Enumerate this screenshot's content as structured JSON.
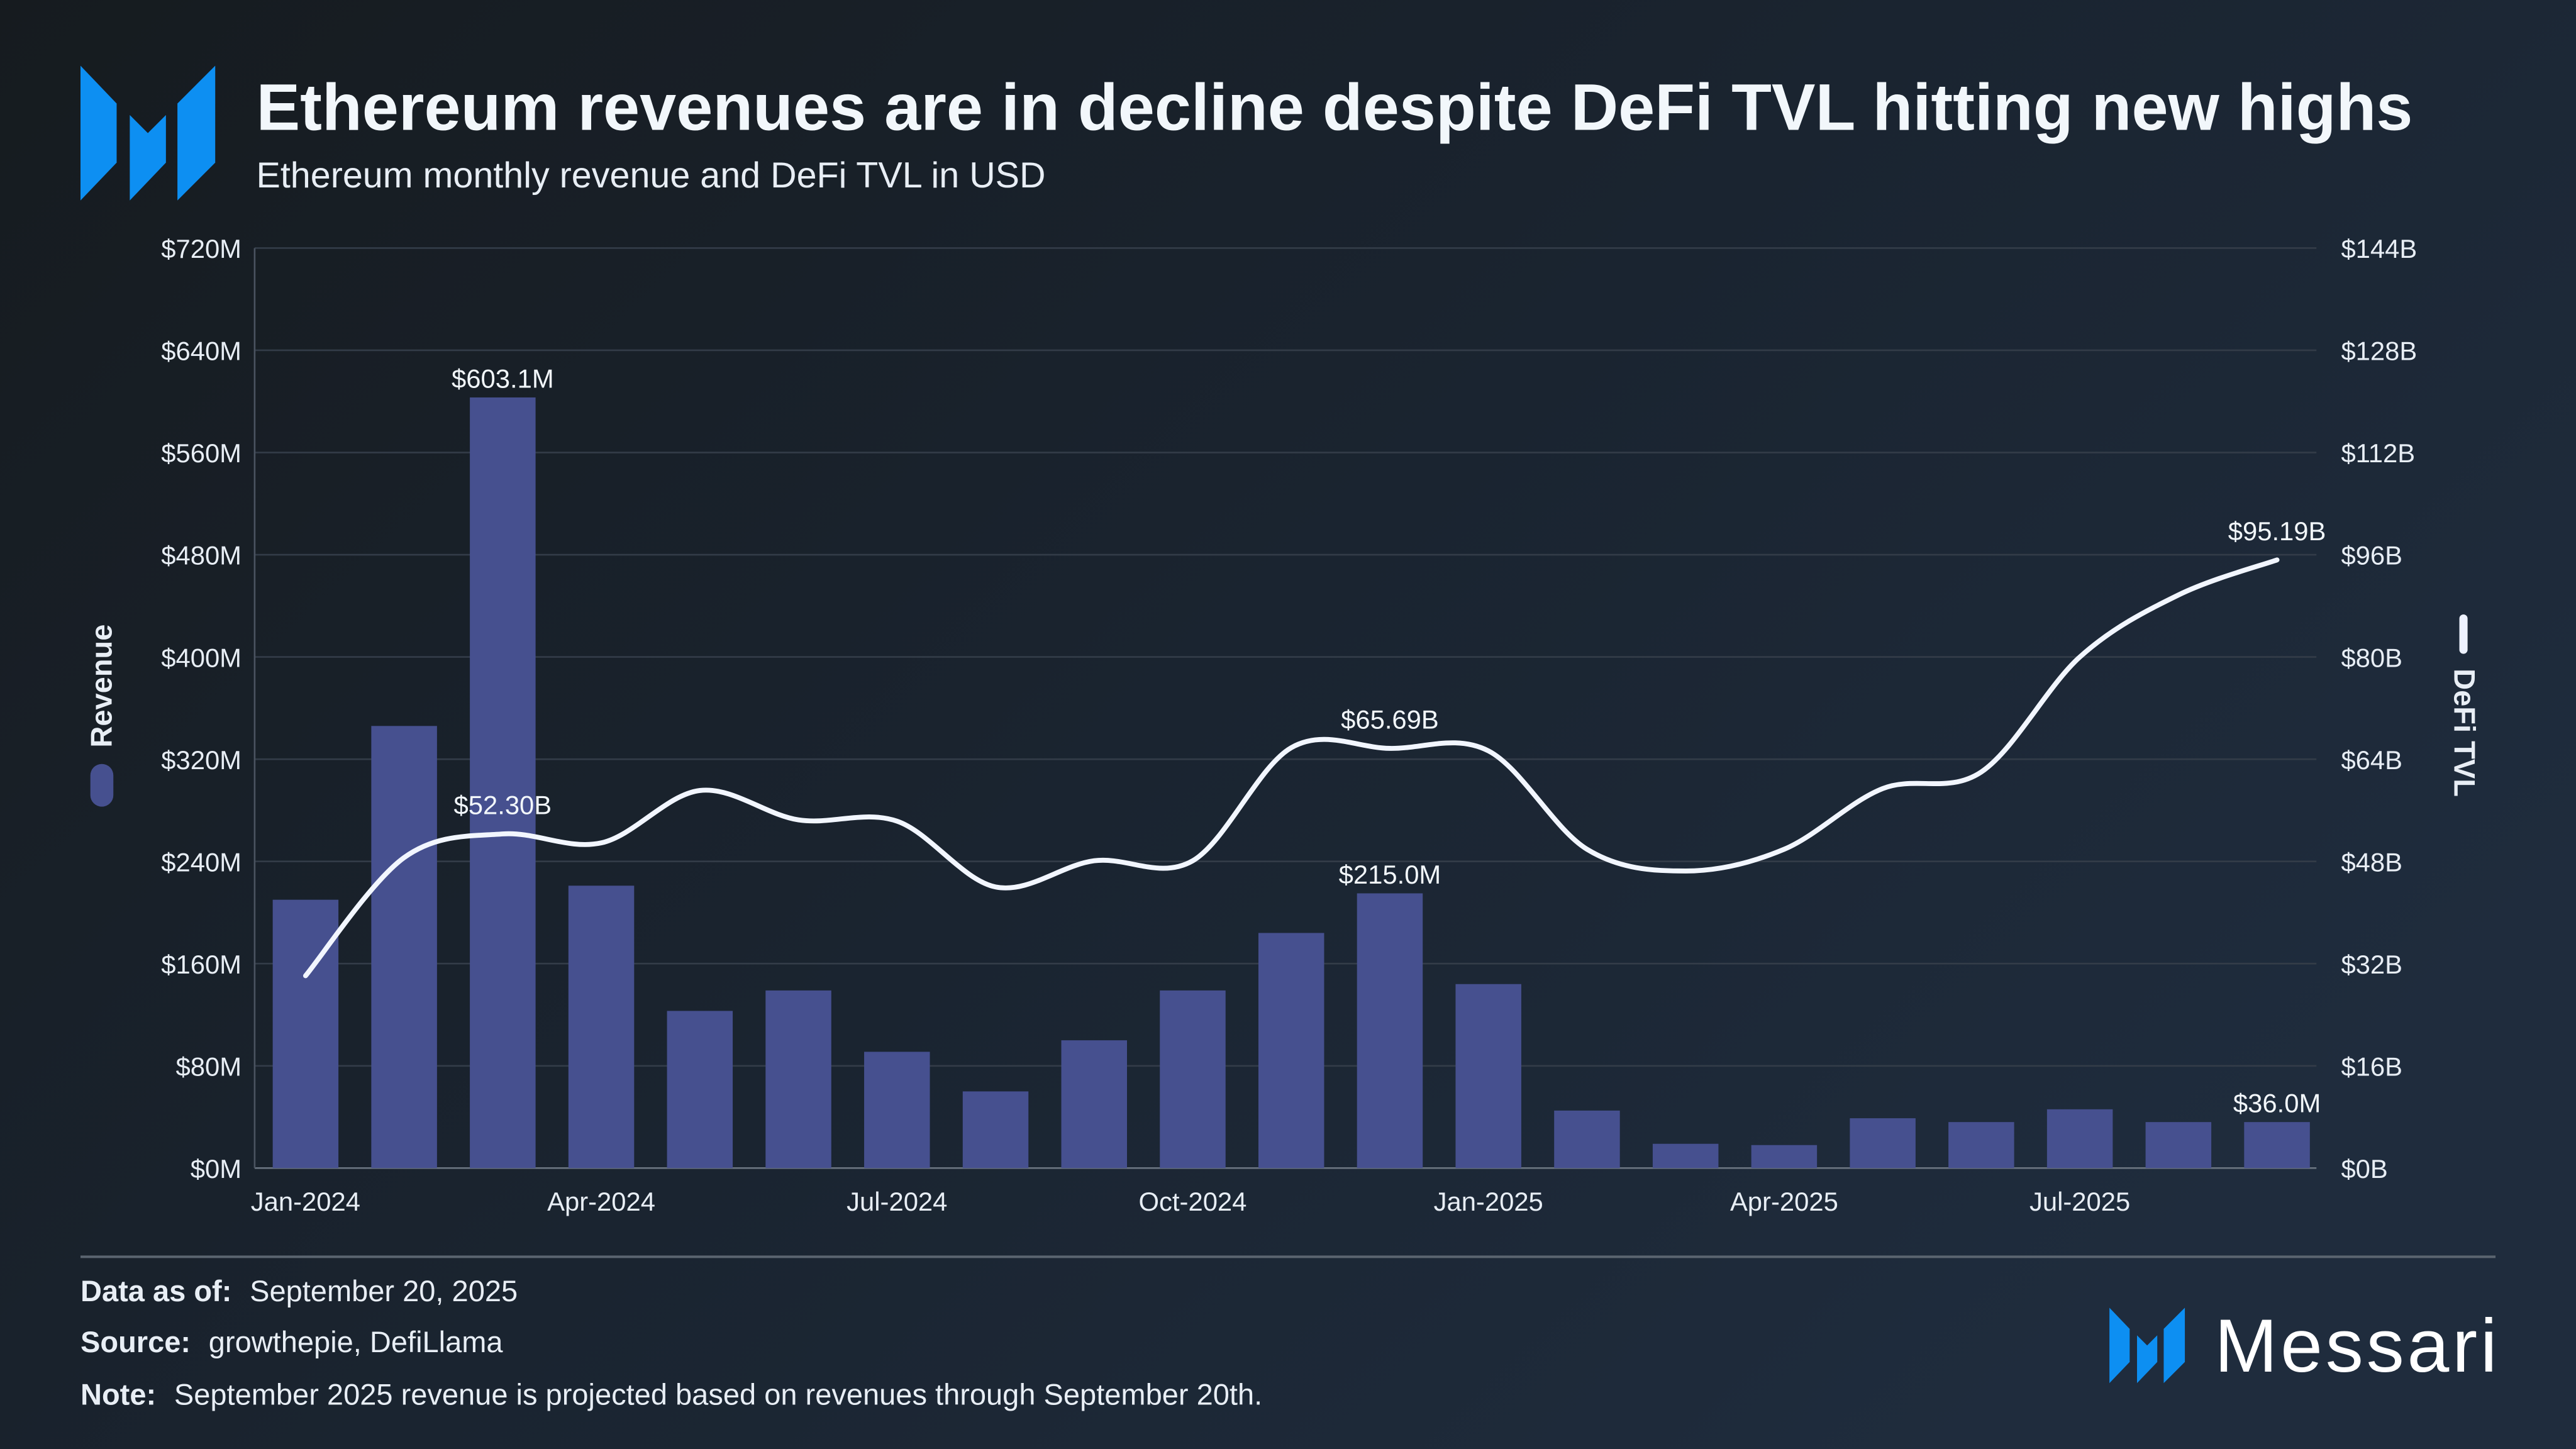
{
  "header": {
    "title": "Ethereum revenues are in decline despite DeFi TVL hitting new highs",
    "subtitle": "Ethereum monthly revenue and DeFi TVL in USD",
    "logo": "messari-logo-icon"
  },
  "chart_data": {
    "type": "bar+line",
    "title": "Ethereum revenues are in decline despite DeFi TVL hitting new highs",
    "subtitle": "Ethereum monthly revenue and DeFi TVL in USD",
    "categories": [
      "Jan-2024",
      "Feb-2024",
      "Mar-2024",
      "Apr-2024",
      "May-2024",
      "Jun-2024",
      "Jul-2024",
      "Aug-2024",
      "Sep-2024",
      "Oct-2024",
      "Nov-2024",
      "Dec-2024",
      "Jan-2025",
      "Feb-2025",
      "Mar-2025",
      "Apr-2025",
      "May-2025",
      "Jun-2025",
      "Jul-2025",
      "Aug-2025",
      "Sep-2025"
    ],
    "x_tick_labels": [
      "Jan-2024",
      "Apr-2024",
      "Jul-2024",
      "Oct-2024",
      "Jan-2025",
      "Apr-2025",
      "Jul-2025"
    ],
    "series": [
      {
        "name": "Revenue",
        "type": "bar",
        "axis": "left",
        "color": "#46508f",
        "values": [
          210,
          346,
          603.1,
          221,
          123,
          139,
          91,
          60,
          100,
          139,
          184,
          215.0,
          144,
          45,
          19,
          18,
          39,
          36,
          46,
          36,
          36.0
        ],
        "unit": "USD M"
      },
      {
        "name": "DeFi TVL",
        "type": "line",
        "axis": "right",
        "color": "#f2f6ff",
        "values": [
          30.1,
          48.6,
          52.3,
          50.9,
          59.1,
          54.5,
          54.3,
          44.0,
          48.1,
          48.1,
          65.8,
          65.69,
          65.3,
          49.9,
          46.5,
          49.9,
          59.4,
          62.0,
          80.0,
          89.7,
          95.19
        ],
        "unit": "USD B"
      }
    ],
    "data_labels": {
      "bars": [
        {
          "index": 2,
          "text": "$603.1M"
        },
        {
          "index": 11,
          "text": "$215.0M"
        },
        {
          "index": 20,
          "text": "$36.0M"
        }
      ],
      "line": [
        {
          "index": 2,
          "text": "$52.30B"
        },
        {
          "index": 11,
          "text": "$65.69B"
        },
        {
          "index": 20,
          "text": "$95.19B"
        }
      ]
    },
    "y_left": {
      "label": "Revenue",
      "range": [
        0,
        720
      ],
      "ticks": [
        "$0M",
        "$80M",
        "$160M",
        "$240M",
        "$320M",
        "$400M",
        "$480M",
        "$560M",
        "$640M",
        "$720M"
      ]
    },
    "y_right": {
      "label": "DeFi TVL",
      "range": [
        0,
        144
      ],
      "ticks": [
        "$0B",
        "$16B",
        "$32B",
        "$48B",
        "$64B",
        "$80B",
        "$96B",
        "$112B",
        "$128B",
        "$144B"
      ]
    },
    "grid": true,
    "legend_placement": "left and right axes (vertical)"
  },
  "footer": {
    "data_as_of_label": "Data as of:",
    "data_as_of": "September 20, 2025",
    "source_label": "Source:",
    "source": "growthepie, DefiLlama",
    "note_label": "Note:",
    "note": "September 2025 revenue is projected based on revenues through September 20th.",
    "brand": "Messari"
  },
  "colors": {
    "background": "#171c20",
    "accent": "#0d8ff2",
    "bar": "#46508f",
    "line": "#f2f6ff",
    "grid": "#3a4350"
  }
}
